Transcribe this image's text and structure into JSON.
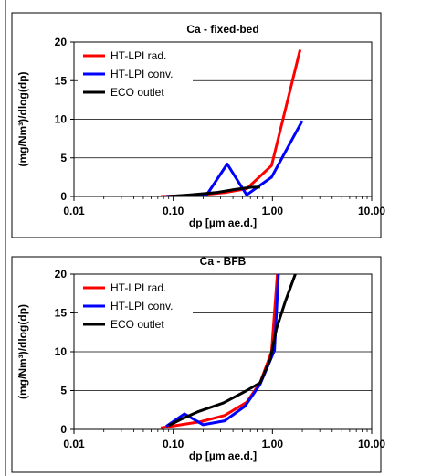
{
  "chart_data": [
    {
      "type": "line",
      "title": "Ca  - fixed-bed",
      "xlabel": "dp [µm ae.d.]",
      "ylabel": "(mg/Nm³)/dlog(dp)",
      "xscale": "log",
      "xlim": [
        0.01,
        10
      ],
      "ylim": [
        0,
        20
      ],
      "xticks": [
        "0.01",
        "0.10",
        "1.00",
        "10.00"
      ],
      "yticks": [
        "0",
        "5",
        "10",
        "15",
        "20"
      ],
      "grid": "horizontal",
      "legend": "top-left",
      "series": [
        {
          "name": "HT-LPI rad.",
          "color": "#ff0000",
          "x": [
            0.075,
            0.12,
            0.19,
            0.33,
            0.55,
            0.98,
            1.9
          ],
          "y": [
            0.0,
            0.1,
            0.2,
            0.5,
            1.0,
            4.0,
            19.0
          ]
        },
        {
          "name": "HT-LPI conv.",
          "color": "#0000ff",
          "x": [
            0.085,
            0.13,
            0.22,
            0.35,
            0.55,
            0.98,
            2.0
          ],
          "y": [
            0.0,
            0.1,
            0.3,
            4.2,
            0.2,
            2.5,
            9.8
          ]
        },
        {
          "name": "ECO outlet",
          "color": "#000000",
          "x": [
            0.09,
            0.15,
            0.27,
            0.42,
            0.62,
            0.75
          ],
          "y": [
            0.0,
            0.2,
            0.5,
            0.9,
            1.2,
            1.2
          ]
        }
      ]
    },
    {
      "type": "line",
      "title": "Ca  - BFB",
      "xlabel": "dp [µm ae.d.]",
      "ylabel": "(mg/Nm³)/dlog(dp)",
      "xscale": "log",
      "xlim": [
        0.01,
        10
      ],
      "ylim": [
        0,
        20
      ],
      "xticks": [
        "0.01",
        "0.10",
        "1.00",
        "10.00"
      ],
      "yticks": [
        "0",
        "5",
        "10",
        "15",
        "20"
      ],
      "grid": "horizontal",
      "legend": "top-left",
      "series": [
        {
          "name": "HT-LPI rad.",
          "color": "#ff0000",
          "x": [
            0.075,
            0.12,
            0.19,
            0.33,
            0.55,
            0.75,
            0.98,
            1.12
          ],
          "y": [
            0.2,
            0.6,
            1.0,
            1.8,
            3.5,
            6.0,
            10.0,
            20.0
          ]
        },
        {
          "name": "HT-LPI conv.",
          "color": "#0000ff",
          "x": [
            0.085,
            0.13,
            0.2,
            0.33,
            0.53,
            0.75,
            1.05,
            1.15
          ],
          "y": [
            0.4,
            2.0,
            0.6,
            1.1,
            3.0,
            5.8,
            10.2,
            20.0
          ]
        },
        {
          "name": "ECO outlet",
          "color": "#000000",
          "x": [
            0.09,
            0.12,
            0.18,
            0.32,
            0.55,
            0.75,
            0.95,
            1.1,
            1.35,
            1.7
          ],
          "y": [
            0.5,
            1.3,
            2.3,
            3.4,
            5.0,
            6.0,
            9.0,
            13.0,
            16.5,
            20.0
          ]
        }
      ]
    }
  ]
}
